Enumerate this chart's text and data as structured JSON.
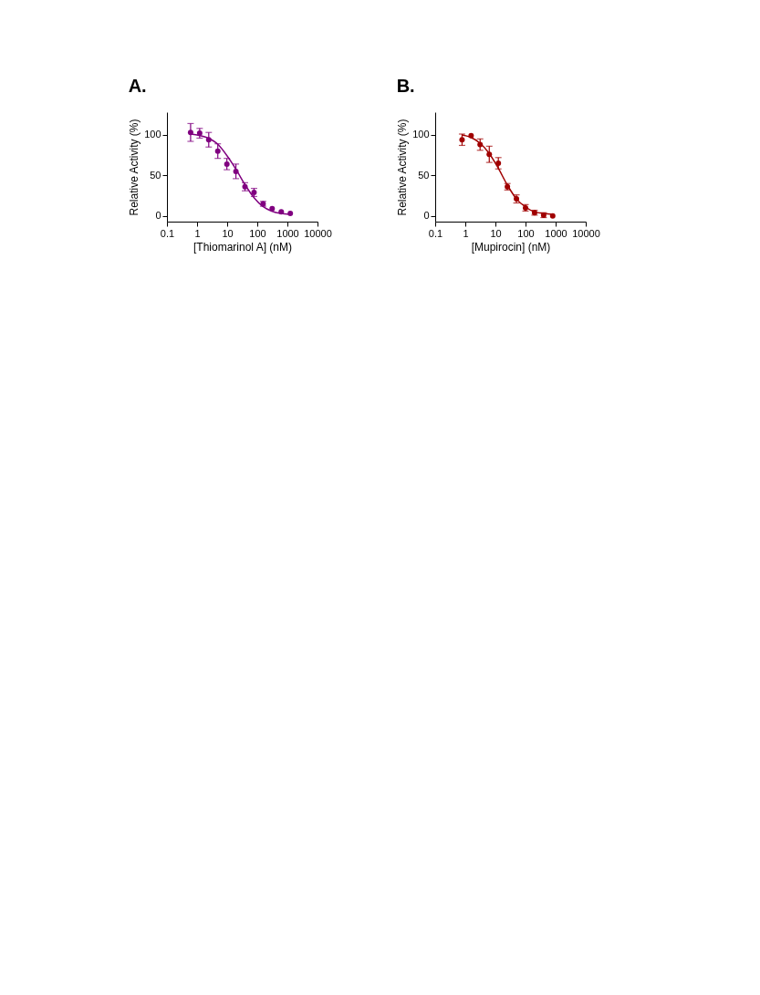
{
  "chart_data": [
    {
      "type": "scatter",
      "title": "A.",
      "xlabel": "[Thiomarinol A] (nM)",
      "ylabel": "Relative Activity (%)",
      "log": "x",
      "grid": false,
      "xlim": [
        0.1,
        10000
      ],
      "xticks": [
        0.1,
        1,
        10,
        100,
        1000,
        10000
      ],
      "ylim": [
        -7,
        128
      ],
      "yticks": [
        0,
        50,
        100
      ],
      "series": [
        {
          "marker": "circle",
          "color": "#800080",
          "x": [
            0.61,
            1.22,
            2.44,
            4.88,
            9.77,
            19.5,
            39,
            78,
            156,
            312,
            625,
            1250
          ],
          "values": [
            103,
            102,
            94,
            80,
            64,
            55,
            36,
            29,
            15,
            9,
            5,
            3
          ],
          "errors": [
            11,
            6,
            9,
            9,
            7,
            9,
            5,
            5,
            3,
            null,
            null,
            null
          ]
        },
        {
          "type": "line",
          "color": "#800080",
          "x": [
            0.6,
            1,
            2,
            5,
            10,
            20,
            40,
            80,
            150,
            300,
            600,
            1200
          ],
          "values": [
            101,
            100,
            97,
            88,
            74,
            57,
            38,
            22,
            12,
            6,
            3,
            2
          ]
        }
      ]
    },
    {
      "type": "scatter",
      "title": "B.",
      "xlabel": "[Mupirocin] (nM)",
      "ylabel": "Relative Activity (%)",
      "log": "x",
      "grid": false,
      "xlim": [
        0.1,
        10000
      ],
      "xticks": [
        0.1,
        1,
        10,
        100,
        1000,
        10000
      ],
      "ylim": [
        -7,
        128
      ],
      "yticks": [
        0,
        50,
        100
      ],
      "series": [
        {
          "marker": "circle",
          "color": "#a00000",
          "x": [
            0.78,
            1.56,
            3.1,
            6.25,
            12.5,
            25,
            50,
            100,
            200,
            400,
            800
          ],
          "values": [
            94,
            99,
            88,
            76,
            65,
            36,
            21,
            10,
            4,
            1,
            0
          ],
          "errors": [
            7,
            null,
            7,
            10,
            7,
            4,
            5,
            4,
            3,
            3,
            null
          ]
        },
        {
          "type": "line",
          "color": "#a00000",
          "x": [
            0.78,
            1.5,
            3,
            6,
            12,
            25,
            50,
            100,
            200,
            400,
            800
          ],
          "values": [
            100,
            97,
            90,
            78,
            60,
            38,
            21,
            11,
            5,
            3,
            2
          ]
        }
      ]
    }
  ]
}
